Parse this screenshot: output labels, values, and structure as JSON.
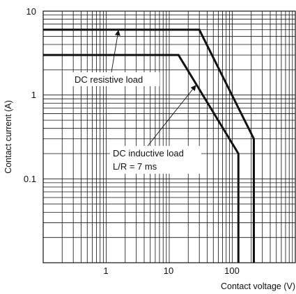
{
  "chart_data": {
    "type": "line",
    "title": "",
    "xlabel": "Contact voltage (V)",
    "ylabel": "Contact current (A)",
    "x_scale": "log",
    "y_scale": "log",
    "xlim": [
      0.1,
      1000
    ],
    "ylim": [
      0.01,
      10
    ],
    "x_tick_labels": [
      "1",
      "10",
      "100"
    ],
    "y_tick_labels": [
      "10",
      "1",
      "0.1"
    ],
    "grid": true,
    "series": [
      {
        "name": "DC resistive load",
        "points": [
          [
            0.1,
            6
          ],
          [
            30,
            6
          ],
          [
            220,
            0.3
          ],
          [
            220,
            0.01
          ]
        ]
      },
      {
        "name": "DC inductive load L/R = 7 ms",
        "points": [
          [
            0.1,
            3
          ],
          [
            14,
            3
          ],
          [
            125,
            0.2
          ],
          [
            125,
            0.01
          ]
        ]
      }
    ],
    "annotations": [
      {
        "lines": [
          "DC resistive load"
        ]
      },
      {
        "lines": [
          "DC inductive load",
          "L/R = 7 ms"
        ]
      }
    ]
  }
}
